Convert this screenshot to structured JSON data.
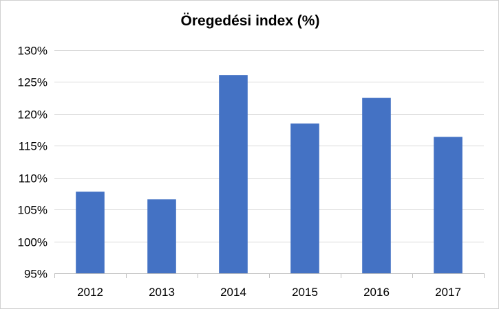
{
  "chart_data": {
    "type": "bar",
    "title": "Öregedési index (%)",
    "categories": [
      "2012",
      "2013",
      "2014",
      "2015",
      "2016",
      "2017"
    ],
    "values": [
      107.8,
      106.6,
      126.1,
      118.5,
      122.5,
      116.4
    ],
    "ylim": [
      95,
      130
    ],
    "yticks": [
      95,
      100,
      105,
      110,
      115,
      120,
      125,
      130
    ],
    "ytick_labels": [
      "95%",
      "100%",
      "105%",
      "110%",
      "115%",
      "120%",
      "125%",
      "130%"
    ],
    "xlabel": "",
    "ylabel": "",
    "grid": true,
    "legend": "none",
    "bar_color": "#4472c4",
    "grid_color": "#d9d9d9",
    "axis_color": "#bfbfbf"
  }
}
